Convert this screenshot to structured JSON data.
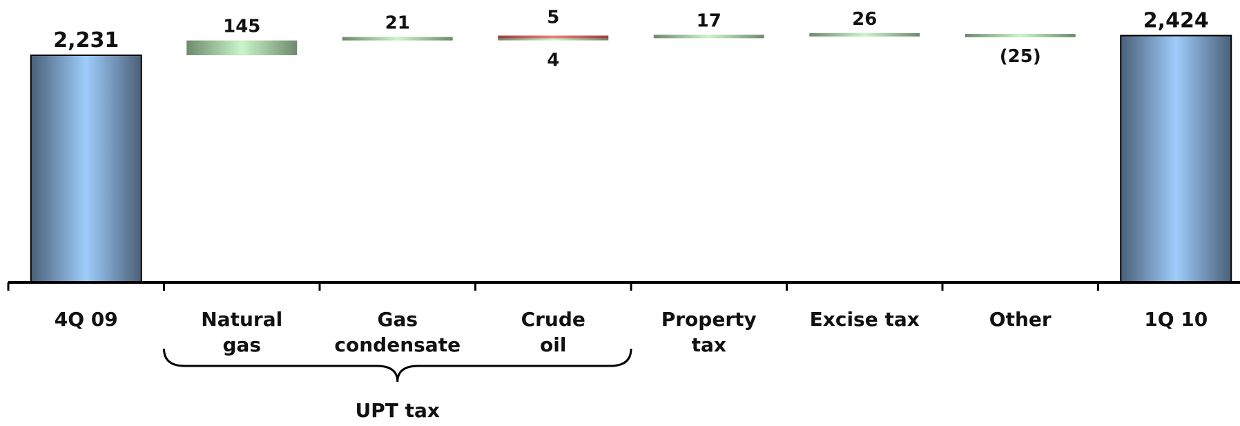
{
  "chart_data": {
    "type": "bar",
    "subtype": "waterfall",
    "categories": [
      [
        "4Q 09"
      ],
      [
        "Natural",
        "gas"
      ],
      [
        "Gas",
        "condensate"
      ],
      [
        "Crude",
        "oil"
      ],
      [
        "Property",
        "tax"
      ],
      [
        "Excise tax"
      ],
      [
        "Other"
      ],
      [
        "1Q 10"
      ]
    ],
    "bars": [
      {
        "kind": "total",
        "value": 2231,
        "label": "2,231"
      },
      {
        "kind": "increase",
        "value": 145,
        "label": "145"
      },
      {
        "kind": "increase",
        "value": 21,
        "label": "21"
      },
      {
        "kind": "mixed",
        "increase": 5,
        "decrease": 4,
        "label_top": "5",
        "label_bottom": "4"
      },
      {
        "kind": "increase",
        "value": 17,
        "label": "17"
      },
      {
        "kind": "increase",
        "value": 26,
        "label": "26"
      },
      {
        "kind": "decrease",
        "value": -25,
        "label": "(25)"
      },
      {
        "kind": "total",
        "value": 2424,
        "label": "2,424"
      }
    ],
    "group_bracket": {
      "label": "UPT tax",
      "from_index": 1,
      "to_index": 3
    },
    "colors": {
      "total_dark": "#4a5f78",
      "total_light": "#9fcdfc",
      "increase_dark": "#6e8a6e",
      "increase_light": "#c9f5c9",
      "decrease_dark": "#a33a3a",
      "decrease_light": "#f08080"
    }
  }
}
